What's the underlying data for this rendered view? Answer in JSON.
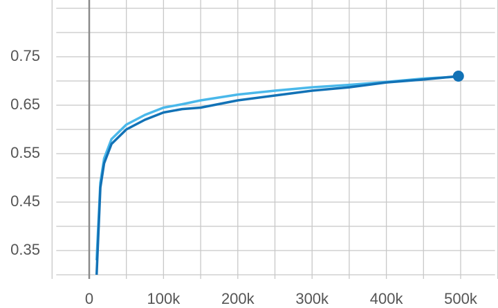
{
  "chart_data": {
    "type": "line",
    "x": [
      10000,
      15000,
      20000,
      30000,
      50000,
      75000,
      100000,
      125000,
      150000,
      200000,
      250000,
      300000,
      350000,
      400000,
      450000,
      497000
    ],
    "series": [
      {
        "color": "#4ab8ea",
        "values": [
          0.33,
          0.49,
          0.54,
          0.58,
          0.61,
          0.63,
          0.645,
          0.652,
          0.66,
          0.672,
          0.68,
          0.687,
          0.692,
          0.698,
          0.705,
          0.709
        ]
      },
      {
        "color": "#1272b6",
        "values": [
          0.3,
          0.48,
          0.53,
          0.57,
          0.6,
          0.62,
          0.635,
          0.642,
          0.645,
          0.66,
          0.67,
          0.68,
          0.687,
          0.697,
          0.703,
          0.71
        ]
      }
    ],
    "xlim": [
      -50000,
      550000
    ],
    "ylim": [
      0.3,
      0.85
    ],
    "xticks": [
      0,
      {
        "value": 100000,
        "label": "100k"
      },
      {
        "value": 200000,
        "label": "200k"
      },
      {
        "value": 300000,
        "label": "300k"
      },
      {
        "value": 400000,
        "label": "400k"
      },
      {
        "value": 500000,
        "label": "500k"
      }
    ],
    "yticks": [
      0.35,
      0.45,
      0.55,
      0.65,
      0.75
    ],
    "xgrid": [
      -50000,
      0,
      50000,
      100000,
      150000,
      200000,
      250000,
      300000,
      350000,
      400000,
      450000,
      500000,
      550000
    ],
    "ygrid": [
      0.3,
      0.35,
      0.4,
      0.45,
      0.5,
      0.55,
      0.6,
      0.65,
      0.7,
      0.75,
      0.8,
      0.85
    ],
    "grid": true
  }
}
